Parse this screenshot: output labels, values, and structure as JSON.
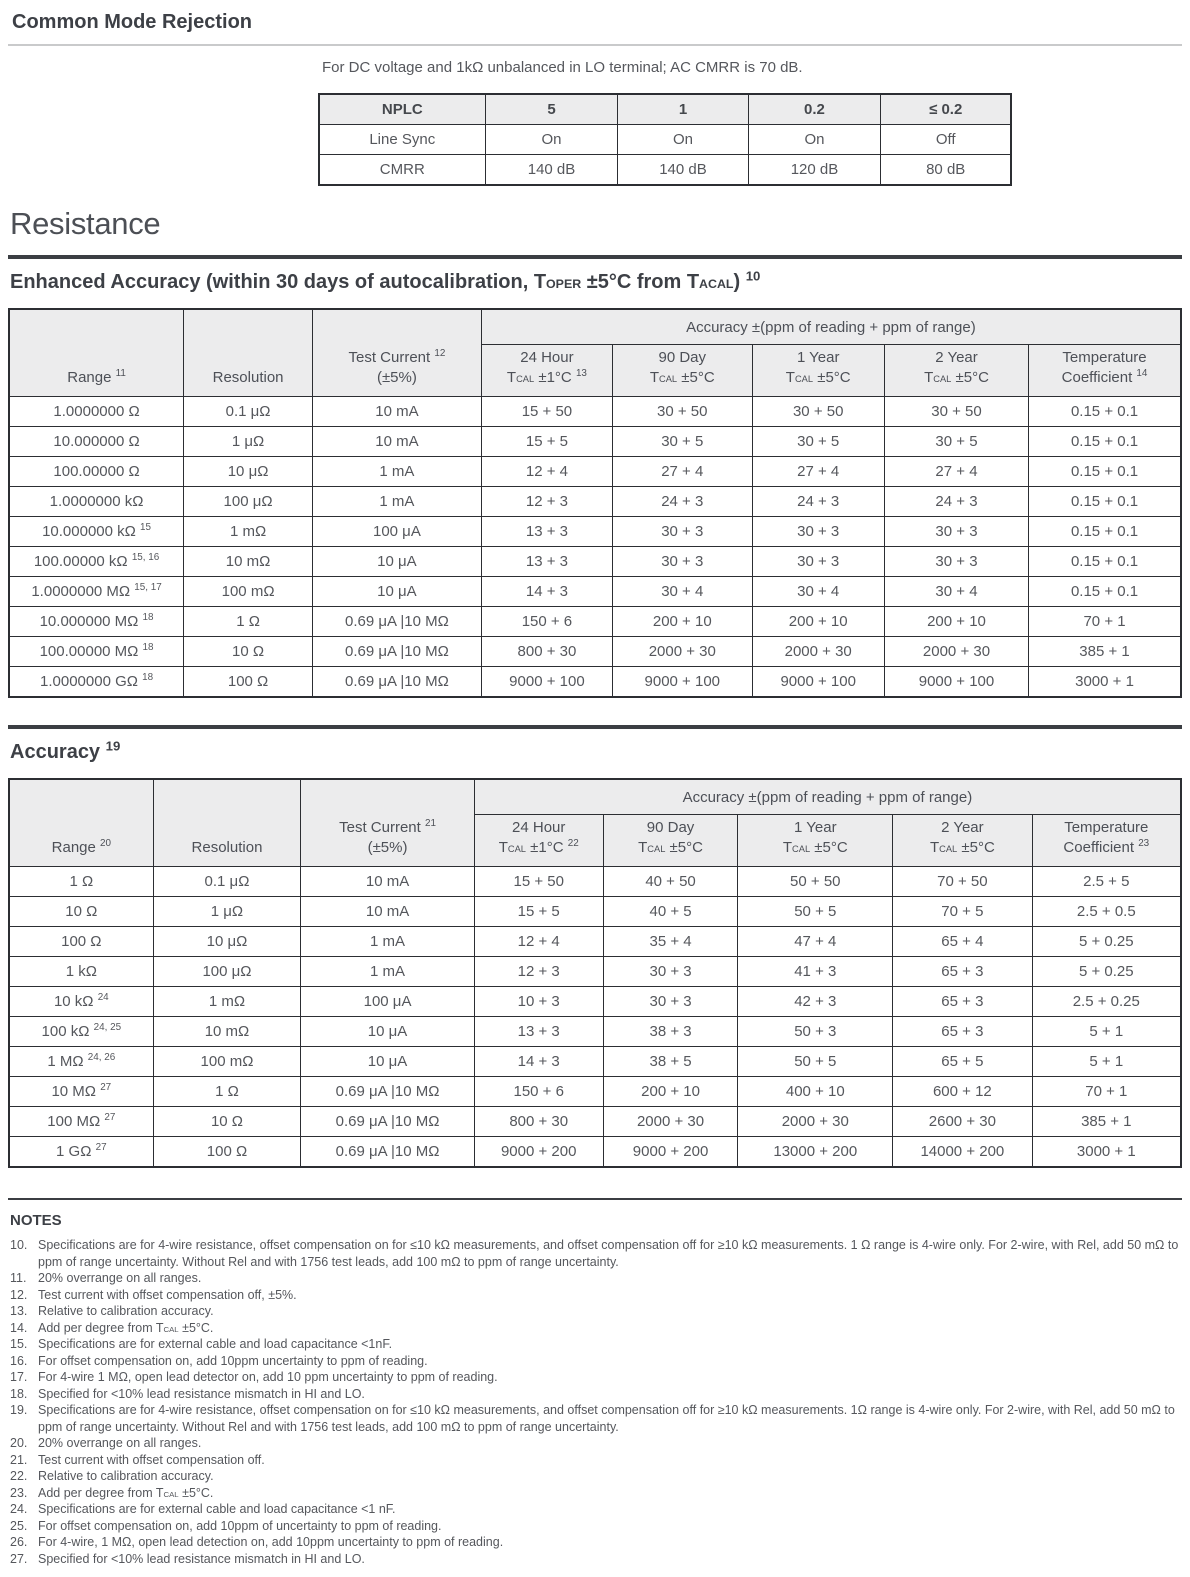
{
  "page": {
    "colors": {
      "text": "#55575c",
      "heading": "#3d4046",
      "table_border": "#2c2e33",
      "table_header_fill": "#ececed",
      "rule_dark": "#3b3e43",
      "rule_light": "#c9cacb"
    }
  },
  "cmr": {
    "title": "Common Mode Rejection",
    "intro": "For DC voltage and 1kΩ unbalanced in LO terminal; AC CMRR is 70 dB.",
    "table": {
      "col_widths": [
        "24%",
        "19.2%",
        "18.8%",
        "19.2%",
        "18.8%"
      ],
      "header_row": [
        "NPLC",
        "5",
        "1",
        "0.2",
        "≤ 0.2"
      ],
      "rows": [
        [
          "Line Sync",
          "On",
          "On",
          "On",
          "Off"
        ],
        [
          "CMRR",
          "140 dB",
          "140 dB",
          "120 dB",
          "80 dB"
        ]
      ]
    }
  },
  "resistance": {
    "title": "Resistance"
  },
  "enhanced": {
    "heading": "Enhanced Accuracy (within 30 days of autocalibration, T~OPER~ ±5°C from T~ACAL~) ^10^",
    "table": {
      "col_widths": [
        "14.9%",
        "11%",
        "14.4%",
        "11.2%",
        "11.9%",
        "11.3%",
        "12.3%",
        "13%"
      ],
      "group_header": "Accuracy ±(ppm of reading + ppm of range)",
      "columns": [
        "Range ^11^",
        "Resolution",
        "Test Current ^12^\n(±5%)",
        "24 Hour\nT~CAL~ ±1°C ^13^",
        "90 Day\nT~CAL~ ±5°C",
        "1 Year\nT~CAL~ ±5°C",
        "2 Year\nT~CAL~ ±5°C",
        "Temperature\nCoefficient ^14^"
      ],
      "rows": [
        [
          "1.0000000 Ω",
          "0.1 μΩ",
          "10 mA",
          "15 + 50",
          "30 + 50",
          "30 + 50",
          "30 + 50",
          "0.15 + 0.1"
        ],
        [
          "10.000000 Ω",
          "1 μΩ",
          "10 mA",
          "15 + 5",
          "30 + 5",
          "30 + 5",
          "30 + 5",
          "0.15 + 0.1"
        ],
        [
          "100.00000 Ω",
          "10 μΩ",
          "1 mA",
          "12 + 4",
          "27 + 4",
          "27 + 4",
          "27 + 4",
          "0.15 + 0.1"
        ],
        [
          "1.0000000 kΩ",
          "100 μΩ",
          "1 mA",
          "12 + 3",
          "24 + 3",
          "24 + 3",
          "24 + 3",
          "0.15 + 0.1"
        ],
        [
          "10.000000 kΩ ^15^",
          "1 mΩ",
          "100 μA",
          "13 + 3",
          "30 + 3",
          "30 + 3",
          "30 + 3",
          "0.15 + 0.1"
        ],
        [
          "100.00000 kΩ ^15, 16^",
          "10 mΩ",
          "10 μA",
          "13 + 3",
          "30 + 3",
          "30 + 3",
          "30 + 3",
          "0.15 + 0.1"
        ],
        [
          "1.0000000 MΩ ^15, 17^",
          "100 mΩ",
          "10 μA",
          "14 + 3",
          "30 + 4",
          "30 + 4",
          "30 + 4",
          "0.15 + 0.1"
        ],
        [
          "10.000000 MΩ ^18^",
          "1 Ω",
          "0.69 μA |10 MΩ",
          "150 + 6",
          "200 + 10",
          "200 + 10",
          "200 + 10",
          "70 + 1"
        ],
        [
          "100.00000 MΩ ^18^",
          "10 Ω",
          "0.69 μA |10 MΩ",
          "800 + 30",
          "2000 + 30",
          "2000 + 30",
          "2000 + 30",
          "385 + 1"
        ],
        [
          "1.0000000 GΩ ^18^",
          "100 Ω",
          "0.69 μA |10 MΩ",
          "9000 + 100",
          "9000 + 100",
          "9000 + 100",
          "9000 + 100",
          "3000 + 1"
        ]
      ]
    }
  },
  "accuracy": {
    "heading": "Accuracy ^19^",
    "table": {
      "col_widths": [
        "12.3%",
        "12.6%",
        "14.8%",
        "11%",
        "11.5%",
        "13.2%",
        "11.9%",
        "12.7%"
      ],
      "group_header": "Accuracy ±(ppm of reading + ppm of range)",
      "columns": [
        "Range ^20^",
        "Resolution",
        "Test Current ^21^\n(±5%)",
        "24 Hour\nT~CAL~ ±1°C ^22^",
        "90 Day\nT~CAL~ ±5°C",
        "1 Year\nT~CAL~ ±5°C",
        "2 Year\nT~CAL~ ±5°C",
        "Temperature\nCoefficient ^23^"
      ],
      "rows": [
        [
          "1 Ω",
          "0.1 μΩ",
          "10 mA",
          "15 + 50",
          "40 + 50",
          "50 + 50",
          "70 + 50",
          "2.5 + 5"
        ],
        [
          "10 Ω",
          "1 μΩ",
          "10 mA",
          "15 + 5",
          "40 + 5",
          "50 + 5",
          "70 + 5",
          "2.5 + 0.5"
        ],
        [
          "100 Ω",
          "10 μΩ",
          "1 mA",
          "12 + 4",
          "35 + 4",
          "47 + 4",
          "65 + 4",
          "5 + 0.25"
        ],
        [
          "1 kΩ",
          "100 μΩ",
          "1 mA",
          "12 + 3",
          "30 + 3",
          "41 + 3",
          "65 + 3",
          "5 + 0.25"
        ],
        [
          "10 kΩ ^24^",
          "1 mΩ",
          "100 μA",
          "10 + 3",
          "30 + 3",
          "42 + 3",
          "65 + 3",
          "2.5 + 0.25"
        ],
        [
          "100 kΩ ^24, 25^",
          "10 mΩ",
          "10 μA",
          "13 + 3",
          "38 + 3",
          "50 + 3",
          "65 + 3",
          "5 + 1"
        ],
        [
          "1 MΩ ^24, 26^",
          "100 mΩ",
          "10 μA",
          "14 + 3",
          "38 + 5",
          "50 + 5",
          "65 + 5",
          "5 + 1"
        ],
        [
          "10 MΩ ^27^",
          "1 Ω",
          "0.69 μA |10 MΩ",
          "150 + 6",
          "200 + 10",
          "400 + 10",
          "600 + 12",
          "70 + 1"
        ],
        [
          "100 MΩ ^27^",
          "10 Ω",
          "0.69 μA |10 MΩ",
          "800 + 30",
          "2000 + 30",
          "2000 + 30",
          "2600 + 30",
          "385 + 1"
        ],
        [
          "1 GΩ ^27^",
          "100 Ω",
          "0.69 μA |10 MΩ",
          "9000 + 200",
          "9000 + 200",
          "13000 + 200",
          "14000 + 200",
          "3000 + 1"
        ]
      ]
    }
  },
  "notes": {
    "title": "NOTES",
    "items": [
      {
        "num": "10.",
        "text": "Specifications are for 4-wire resistance, offset compensation on for ≤10 kΩ measurements, and offset compensation off for ≥10 kΩ measurements. 1 Ω range is 4-wire only. For 2-wire, with Rel, add 50 mΩ to ppm of range uncertainty. Without Rel and with 1756 test leads, add 100 mΩ to ppm of range uncertainty."
      },
      {
        "num": "11.",
        "text": "20% overrange on all ranges."
      },
      {
        "num": "12.",
        "text": "Test current with offset compensation off, ±5%."
      },
      {
        "num": "13.",
        "text": "Relative to calibration accuracy."
      },
      {
        "num": "14.",
        "text": "Add per degree from T~CAL~ ±5°C."
      },
      {
        "num": "15.",
        "text": "Specifications are for external cable and load capacitance <1nF."
      },
      {
        "num": "16.",
        "text": "For offset compensation on, add 10ppm uncertainty to ppm of reading."
      },
      {
        "num": "17.",
        "text": "For 4-wire 1 MΩ, open lead detector on, add 10 ppm uncertainty to ppm of reading."
      },
      {
        "num": "18.",
        "text": "Specified for <10% lead resistance mismatch in HI and LO."
      },
      {
        "num": "19.",
        "text": "Specifications are for 4-wire resistance, offset compensation on for ≤10 kΩ measurements, and offset compensation off for ≥10 kΩ measurements. 1Ω range is 4-wire only. For 2-wire, with Rel, add 50 mΩ to ppm of range uncertainty. Without Rel and with 1756 test leads, add 100 mΩ to ppm of range uncertainty."
      },
      {
        "num": "20.",
        "text": "20% overrange on all ranges."
      },
      {
        "num": "21.",
        "text": "Test current with offset compensation off."
      },
      {
        "num": "22.",
        "text": "Relative to calibration accuracy."
      },
      {
        "num": "23.",
        "text": "Add per degree from T~CAL~ ±5°C."
      },
      {
        "num": "24.",
        "text": "Specifications are for external cable and load capacitance <1 nF."
      },
      {
        "num": "25.",
        "text": "For offset compensation on, add 10ppm of uncertainty to ppm of reading."
      },
      {
        "num": "26.",
        "text": "For 4-wire, 1 MΩ, open lead detection on, add 10ppm uncertainty to ppm of reading."
      },
      {
        "num": "27.",
        "text": "Specified for <10% lead resistance mismatch in HI and LO."
      }
    ]
  }
}
